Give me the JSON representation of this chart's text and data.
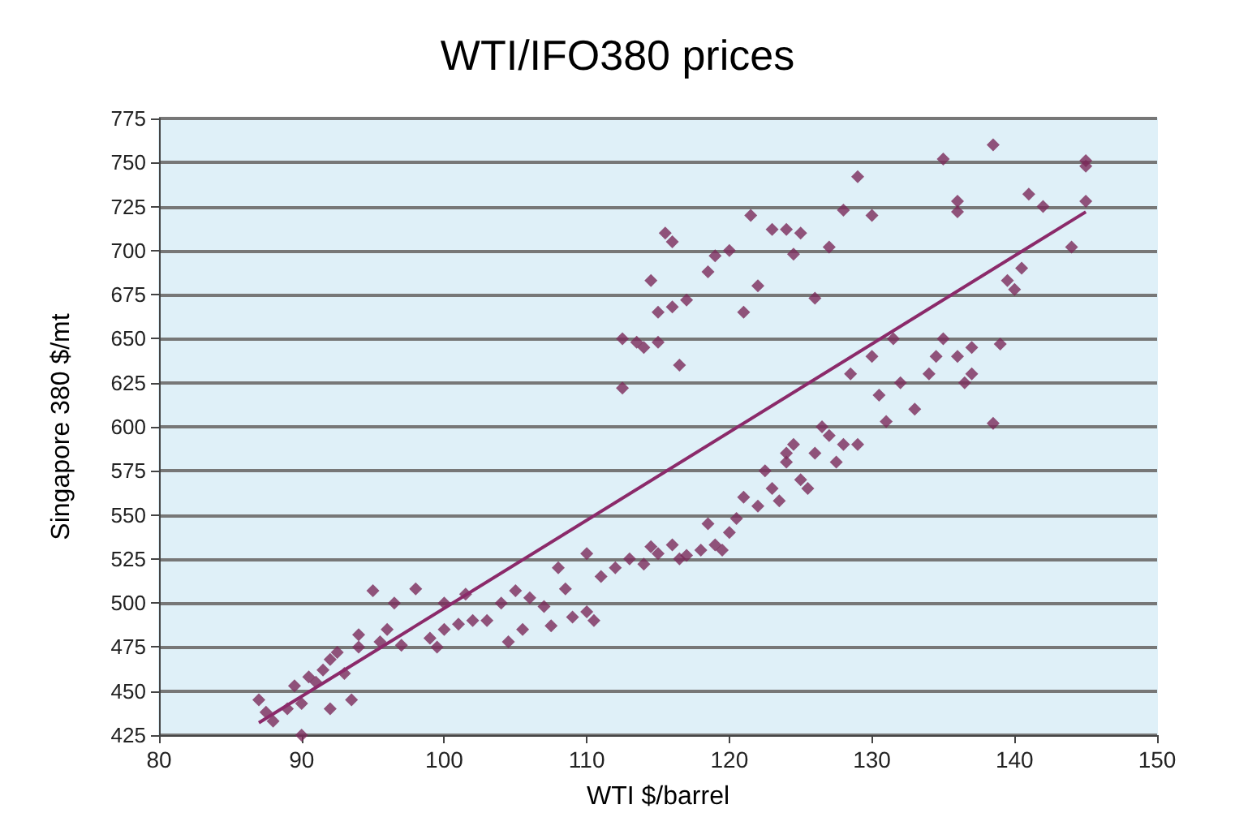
{
  "chart_data": {
    "type": "scatter",
    "title": "WTI/IFO380 prices",
    "xlabel": "WTI $/barrel",
    "ylabel": "Singapore 380 $/mt",
    "xlim": [
      80,
      150
    ],
    "xticks": [
      80,
      90,
      100,
      110,
      120,
      130,
      140,
      150
    ],
    "ylim": [
      425,
      775
    ],
    "yticks": [
      425,
      450,
      475,
      500,
      525,
      550,
      575,
      600,
      625,
      650,
      675,
      700,
      725,
      750,
      775
    ],
    "grid": "y",
    "series": [
      {
        "color": "#7b2a5a",
        "marker": "diamond",
        "x": [
          87,
          87.5,
          88,
          89,
          89.5,
          90,
          90,
          90.5,
          91,
          91.5,
          92,
          92,
          92.5,
          93,
          93.5,
          94,
          94,
          95,
          95.5,
          96,
          96.5,
          97,
          98,
          99,
          99.5,
          100,
          100,
          101,
          101.5,
          102,
          103,
          104,
          104.5,
          105,
          105.5,
          106,
          107,
          107.5,
          108,
          108.5,
          109,
          110,
          110,
          110.5,
          111,
          112,
          113,
          114,
          114.5,
          115,
          116,
          116.5,
          117,
          118,
          118.5,
          119,
          119.5,
          120,
          120.5,
          121,
          122,
          122.5,
          123,
          123.5,
          124,
          124,
          124.5,
          125,
          125.5,
          126,
          126.5,
          127,
          127.5,
          128,
          128.5,
          129,
          130,
          130.5,
          131,
          131.5,
          132,
          133,
          134,
          134.5,
          135,
          136,
          136.5,
          137,
          137,
          138.5,
          139,
          139.5,
          140,
          140.5,
          141,
          142,
          144,
          145,
          145,
          145,
          135,
          138.5,
          136,
          136,
          130,
          129,
          128,
          127,
          126,
          125,
          124.5,
          124,
          123,
          122,
          121.5,
          121,
          120,
          119,
          118.5,
          117,
          116.5,
          116,
          115.5,
          115,
          115,
          114.5,
          114,
          113.5,
          112.5,
          112.5,
          116
        ],
        "values": [
          445,
          438,
          433,
          440,
          453,
          425,
          443,
          458,
          455,
          462,
          440,
          468,
          472,
          460,
          445,
          475,
          482,
          507,
          478,
          485,
          500,
          476,
          508,
          480,
          475,
          485,
          500,
          488,
          505,
          490,
          490,
          500,
          478,
          507,
          485,
          503,
          498,
          487,
          520,
          508,
          492,
          495,
          528,
          490,
          515,
          520,
          525,
          522,
          532,
          528,
          533,
          525,
          527,
          530,
          545,
          533,
          530,
          540,
          548,
          560,
          555,
          575,
          565,
          558,
          580,
          585,
          590,
          570,
          565,
          585,
          600,
          595,
          580,
          590,
          630,
          590,
          640,
          618,
          603,
          650,
          625,
          610,
          630,
          640,
          650,
          640,
          625,
          645,
          630,
          602,
          647,
          683,
          678,
          690,
          732,
          725,
          702,
          728,
          748,
          751,
          752,
          760,
          722,
          728,
          720,
          742,
          723,
          702,
          673,
          710,
          698,
          712,
          712,
          680,
          720,
          665,
          700,
          697,
          688,
          672,
          635,
          705,
          710,
          648,
          665,
          683,
          645,
          648,
          650,
          622,
          668
        ]
      },
      {
        "type": "line",
        "marker": "none",
        "color": "#8b2a6a",
        "x": [
          87,
          145
        ],
        "values": [
          432,
          722
        ]
      }
    ]
  }
}
